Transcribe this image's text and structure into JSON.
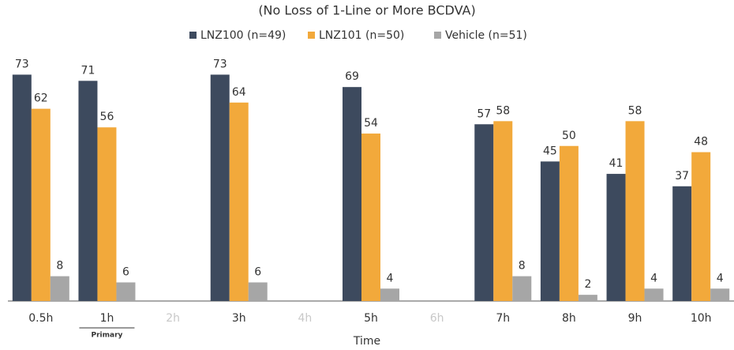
{
  "chart_data": {
    "type": "bar",
    "title": "(No Loss of 1-Line or More BCDVA)",
    "x_label": "Time",
    "categories": [
      "0.5h",
      "1h",
      "2h",
      "3h",
      "4h",
      "5h",
      "6h",
      "7h",
      "8h",
      "9h",
      "10h"
    ],
    "series": [
      {
        "name": "LNZ100 (n=49)",
        "color": "#3d4a5e",
        "values": [
          73,
          71,
          null,
          73,
          null,
          69,
          null,
          57,
          45,
          41,
          37
        ]
      },
      {
        "name": "LNZ101 (n=50)",
        "color": "#f2a93b",
        "values": [
          62,
          56,
          null,
          64,
          null,
          54,
          null,
          58,
          50,
          58,
          48
        ]
      },
      {
        "name": "Vehicle (n=51)",
        "color": "#a6a6a6",
        "values": [
          8,
          6,
          null,
          6,
          null,
          4,
          null,
          8,
          2,
          4,
          4
        ]
      }
    ],
    "ylim": [
      0,
      80
    ],
    "legend": "top",
    "annotations": [
      {
        "label": "Primary",
        "category": "1h"
      }
    ]
  }
}
